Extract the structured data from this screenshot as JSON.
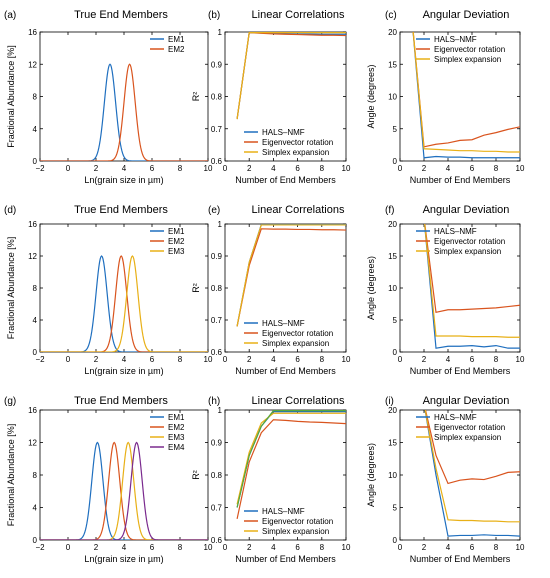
{
  "figure": {
    "rows": [
      {
        "panels": [
          {
            "letter": "(a)",
            "title": "True End Members",
            "kind": "abundance"
          },
          {
            "letter": "(b)",
            "title": "Linear Correlations",
            "kind": "r2"
          },
          {
            "letter": "(c)",
            "title": "Angular Deviation",
            "kind": "angle"
          }
        ]
      },
      {
        "panels": [
          {
            "letter": "(d)",
            "title": "True End Members",
            "kind": "abundance"
          },
          {
            "letter": "(e)",
            "title": "Linear Correlations",
            "kind": "r2"
          },
          {
            "letter": "(f)",
            "title": "Angular Deviation",
            "kind": "angle"
          }
        ]
      },
      {
        "panels": [
          {
            "letter": "(g)",
            "title": "True End Members",
            "kind": "abundance"
          },
          {
            "letter": "(h)",
            "title": "Linear Correlations",
            "kind": "r2"
          },
          {
            "letter": "(i)",
            "title": "Angular Deviation",
            "kind": "angle"
          }
        ]
      }
    ]
  },
  "colors": {
    "blue": "#1f6fbf",
    "red": "#d9541e",
    "yellow": "#e8b017",
    "purple": "#7a2a8e",
    "green": "#58a83a"
  },
  "chart_data": [
    {
      "id": "a",
      "type": "line",
      "title": "True End Members",
      "xlabel": "Ln(grain size in µm)",
      "ylabel": "Fractional Abundance [%]",
      "xlim": [
        -2,
        10
      ],
      "ylim": [
        0,
        16
      ],
      "xticks": [
        -2,
        0,
        2,
        4,
        6,
        8,
        10
      ],
      "yticks": [
        0,
        4,
        8,
        12,
        16
      ],
      "legend": "top-right",
      "series": [
        {
          "name": "EM1",
          "color": "blue",
          "mean": 3.0,
          "sd": 0.4,
          "peak": 12
        },
        {
          "name": "EM2",
          "color": "red",
          "mean": 4.4,
          "sd": 0.4,
          "peak": 12
        }
      ]
    },
    {
      "id": "b",
      "type": "line",
      "title": "Linear Correlations",
      "xlabel": "Number of End Members",
      "ylabel": "R²",
      "xlim": [
        0,
        10
      ],
      "ylim": [
        0.6,
        1
      ],
      "xticks": [
        0,
        2,
        4,
        6,
        8,
        10
      ],
      "yticks": [
        0.6,
        0.7,
        0.8,
        0.9,
        1
      ],
      "ytick_labels": [
        "0.6",
        "0.7",
        "0.8",
        "0.9",
        "1"
      ],
      "legend": "bottom-right",
      "x": [
        1,
        2,
        3,
        4,
        5,
        6,
        7,
        8,
        9,
        10
      ],
      "series": [
        {
          "name": "HALS–NMF",
          "color": "blue",
          "values": [
            0.73,
            0.998,
            0.997,
            0.996,
            0.995,
            0.994,
            0.994,
            0.993,
            0.993,
            0.993
          ]
        },
        {
          "name": "Eigenvector rotation",
          "color": "red",
          "values": [
            0.73,
            0.998,
            0.996,
            0.994,
            0.993,
            0.992,
            0.991,
            0.99,
            0.99,
            0.989
          ]
        },
        {
          "name": "Simplex expansion",
          "color": "yellow",
          "values": [
            0.73,
            0.998,
            0.998,
            0.998,
            0.998,
            0.998,
            0.998,
            0.998,
            0.998,
            0.998
          ]
        }
      ]
    },
    {
      "id": "c",
      "type": "line",
      "title": "Angular Deviation",
      "xlabel": "Number of End Members",
      "ylabel": "Angle (degrees)",
      "xlim": [
        0,
        10
      ],
      "ylim": [
        0,
        20
      ],
      "xticks": [
        0,
        2,
        4,
        6,
        8,
        10
      ],
      "yticks": [
        0,
        5,
        10,
        15,
        20
      ],
      "legend": "top-right",
      "x": [
        1,
        2,
        3,
        4,
        5,
        6,
        7,
        8,
        9,
        10
      ],
      "series": [
        {
          "name": "HALS–NMF",
          "color": "blue",
          "values": [
            22,
            0.5,
            0.7,
            0.6,
            0.6,
            0.5,
            0.5,
            0.5,
            0.5,
            0.5
          ]
        },
        {
          "name": "Eigenvector rotation",
          "color": "red",
          "values": [
            22,
            2.2,
            2.6,
            2.8,
            3.2,
            3.3,
            4.0,
            4.4,
            4.9,
            5.3
          ]
        },
        {
          "name": "Simplex expansion",
          "color": "yellow",
          "values": [
            22,
            1.9,
            1.8,
            1.7,
            1.6,
            1.6,
            1.5,
            1.5,
            1.4,
            1.4
          ]
        }
      ]
    },
    {
      "id": "d",
      "type": "line",
      "title": "True End Members",
      "xlabel": "Ln(grain size in µm)",
      "ylabel": "Fractional Abundance [%]",
      "xlim": [
        -2,
        10
      ],
      "ylim": [
        0,
        16
      ],
      "xticks": [
        -2,
        0,
        2,
        4,
        6,
        8,
        10
      ],
      "yticks": [
        0,
        4,
        8,
        12,
        16
      ],
      "legend": "top-right",
      "series": [
        {
          "name": "EM1",
          "color": "blue",
          "mean": 2.4,
          "sd": 0.4,
          "peak": 12
        },
        {
          "name": "EM2",
          "color": "red",
          "mean": 3.8,
          "sd": 0.4,
          "peak": 12
        },
        {
          "name": "EM3",
          "color": "yellow",
          "mean": 4.6,
          "sd": 0.4,
          "peak": 12
        }
      ]
    },
    {
      "id": "e",
      "type": "line",
      "title": "Linear Correlations",
      "xlabel": "Number of End Members",
      "ylabel": "R²",
      "xlim": [
        0,
        10
      ],
      "ylim": [
        0.6,
        1
      ],
      "xticks": [
        0,
        2,
        4,
        6,
        8,
        10
      ],
      "yticks": [
        0.6,
        0.7,
        0.8,
        0.9,
        1
      ],
      "ytick_labels": [
        "0.6",
        "0.7",
        "0.8",
        "0.9",
        "1"
      ],
      "legend": "bottom-right",
      "x": [
        1,
        2,
        3,
        4,
        5,
        6,
        7,
        8,
        9,
        10
      ],
      "series": [
        {
          "name": "HALS–NMF",
          "color": "blue",
          "values": [
            0.68,
            0.88,
            0.998,
            0.998,
            0.998,
            0.998,
            0.998,
            0.998,
            0.998,
            0.998
          ]
        },
        {
          "name": "Eigenvector rotation",
          "color": "red",
          "values": [
            0.68,
            0.87,
            0.985,
            0.984,
            0.984,
            0.983,
            0.983,
            0.982,
            0.982,
            0.981
          ]
        },
        {
          "name": "Simplex expansion",
          "color": "yellow",
          "values": [
            0.68,
            0.88,
            0.997,
            0.997,
            0.997,
            0.997,
            0.997,
            0.997,
            0.997,
            0.997
          ]
        }
      ]
    },
    {
      "id": "f",
      "type": "line",
      "title": "Angular Deviation",
      "xlabel": "Number of End Members",
      "ylabel": "Angle (degrees)",
      "xlim": [
        0,
        10
      ],
      "ylim": [
        0,
        20
      ],
      "xticks": [
        0,
        2,
        4,
        6,
        8,
        10
      ],
      "yticks": [
        0,
        5,
        10,
        15,
        20
      ],
      "legend": "top-right",
      "x": [
        1,
        2,
        3,
        4,
        5,
        6,
        7,
        8,
        9,
        10
      ],
      "series": [
        {
          "name": "HALS–NMF",
          "color": "blue",
          "values": [
            24,
            21,
            0.6,
            0.9,
            0.9,
            1.0,
            0.8,
            1.0,
            0.6,
            0.6
          ]
        },
        {
          "name": "Eigenvector rotation",
          "color": "red",
          "values": [
            24,
            21,
            6.2,
            6.6,
            6.6,
            6.7,
            6.8,
            6.9,
            7.1,
            7.3
          ]
        },
        {
          "name": "Simplex expansion",
          "color": "yellow",
          "values": [
            24,
            21,
            2.5,
            2.5,
            2.5,
            2.4,
            2.4,
            2.4,
            2.3,
            2.3
          ]
        }
      ]
    },
    {
      "id": "g",
      "type": "line",
      "title": "True End Members",
      "xlabel": "Ln(grain size in µm)",
      "ylabel": "Fractional Abundance [%]",
      "xlim": [
        -2,
        10
      ],
      "ylim": [
        0,
        16
      ],
      "xticks": [
        -2,
        0,
        2,
        4,
        6,
        8,
        10
      ],
      "yticks": [
        0,
        4,
        8,
        12,
        16
      ],
      "legend": "top-right",
      "series": [
        {
          "name": "EM1",
          "color": "blue",
          "mean": 2.1,
          "sd": 0.4,
          "peak": 12
        },
        {
          "name": "EM2",
          "color": "red",
          "mean": 3.3,
          "sd": 0.4,
          "peak": 12
        },
        {
          "name": "EM3",
          "color": "yellow",
          "mean": 4.3,
          "sd": 0.4,
          "peak": 12
        },
        {
          "name": "EM4",
          "color": "purple",
          "mean": 4.9,
          "sd": 0.4,
          "peak": 12
        }
      ]
    },
    {
      "id": "h",
      "type": "line",
      "title": "Linear Correlations",
      "xlabel": "Number of End Members",
      "ylabel": "R²",
      "xlim": [
        0,
        10
      ],
      "ylim": [
        0.6,
        1
      ],
      "xticks": [
        0,
        2,
        4,
        6,
        8,
        10
      ],
      "yticks": [
        0.6,
        0.7,
        0.8,
        0.9,
        1
      ],
      "ytick_labels": [
        "0.6",
        "0.7",
        "0.8",
        "0.9",
        "1"
      ],
      "legend": "bottom-right",
      "x": [
        1,
        2,
        3,
        4,
        5,
        6,
        7,
        8,
        9,
        10
      ],
      "series": [
        {
          "name": "HALS–NMF",
          "color": "blue",
          "values": [
            0.7,
            0.86,
            0.95,
            0.995,
            0.995,
            0.995,
            0.995,
            0.995,
            0.995,
            0.995
          ]
        },
        {
          "name": "Eigenvector rotation",
          "color": "red",
          "values": [
            0.665,
            0.84,
            0.93,
            0.97,
            0.968,
            0.965,
            0.963,
            0.962,
            0.96,
            0.958
          ]
        },
        {
          "name": "Simplex expansion",
          "color": "yellow",
          "values": [
            0.71,
            0.87,
            0.96,
            0.99,
            0.99,
            0.99,
            0.99,
            0.99,
            0.99,
            0.99
          ]
        },
        {
          "color": "green",
          "values": [
            0.7,
            0.86,
            0.95,
            0.998,
            0.998,
            0.998,
            0.998,
            0.998,
            0.998,
            0.998
          ]
        }
      ]
    },
    {
      "id": "i",
      "type": "line",
      "title": "Angular Deviation",
      "xlabel": "Number of End Members",
      "ylabel": "Angle (degrees)",
      "xlim": [
        0,
        10
      ],
      "ylim": [
        0,
        20
      ],
      "xticks": [
        0,
        2,
        4,
        6,
        8,
        10
      ],
      "yticks": [
        0,
        5,
        10,
        15,
        20
      ],
      "legend": "top-right",
      "x": [
        1,
        2,
        3,
        4,
        5,
        6,
        7,
        8,
        9,
        10
      ],
      "series": [
        {
          "name": "HALS–NMF",
          "color": "blue",
          "values": [
            24,
            21,
            10,
            0.6,
            0.7,
            0.7,
            0.8,
            0.7,
            0.7,
            0.6
          ]
        },
        {
          "name": "Eigenvector rotation",
          "color": "red",
          "values": [
            24,
            21,
            13,
            8.7,
            9.2,
            9.4,
            9.3,
            9.8,
            10.4,
            10.5
          ]
        },
        {
          "name": "Simplex expansion",
          "color": "yellow",
          "values": [
            24,
            21,
            11,
            3.1,
            3.0,
            3.0,
            2.9,
            2.9,
            2.8,
            2.8
          ]
        }
      ]
    }
  ]
}
